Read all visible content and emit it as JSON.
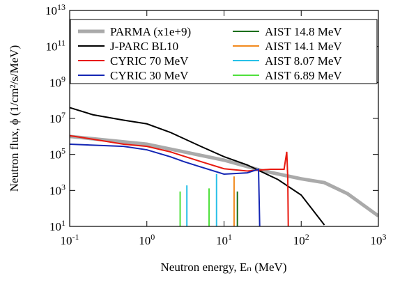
{
  "chart_data": {
    "type": "line",
    "xlabel": "Neutron energy, Eₙ (MeV)",
    "ylabel": "Neutron flux, ϕ (1/cm²/s/MeV)",
    "xlog": true,
    "ylog": true,
    "xlim": [
      0.1,
      1000
    ],
    "ylim": [
      10,
      10000000000000.0
    ],
    "xticks": [
      {
        "value": 0.1,
        "label": "10^-1"
      },
      {
        "value": 1,
        "label": "10^0"
      },
      {
        "value": 10,
        "label": "10^1"
      },
      {
        "value": 100,
        "label": "10^2"
      },
      {
        "value": 1000,
        "label": "10^3"
      }
    ],
    "yticks": [
      {
        "value": 10,
        "label": "10^1"
      },
      {
        "value": 1000,
        "label": "10^3"
      },
      {
        "value": 100000,
        "label": "10^5"
      },
      {
        "value": 10000000,
        "label": "10^7"
      },
      {
        "value": 1000000000,
        "label": "10^9"
      },
      {
        "value": 100000000000,
        "label": "10^11"
      },
      {
        "value": 10000000000000,
        "label": "10^13"
      }
    ],
    "legend": "top",
    "series": [
      {
        "name": "PARMA (x1e+9)",
        "color": "#aaaaaa",
        "width": 5,
        "x": [
          0.1,
          1,
          10,
          30,
          100,
          200,
          400,
          1000
        ],
        "values": [
          1000000,
          370000,
          48000,
          13000,
          4400,
          2700,
          650,
          38
        ]
      },
      {
        "name": "J-PARC BL10",
        "color": "#000000",
        "width": 2,
        "x": [
          0.1,
          0.2,
          0.5,
          1,
          2,
          5,
          10,
          20,
          50,
          100,
          200
        ],
        "values": [
          40000000,
          16000000,
          8000000,
          5000000,
          1700000,
          280000,
          75000,
          26000,
          4000,
          550,
          12
        ]
      },
      {
        "name": "CYRIC 70 MeV",
        "color": "#e8190f",
        "width": 2,
        "x": [
          0.1,
          0.2,
          0.5,
          1,
          2,
          5,
          10,
          20,
          40,
          60,
          65,
          67,
          68
        ],
        "values": [
          1100000,
          700000,
          370000,
          280000,
          140000,
          40000,
          16000,
          12000,
          15000,
          15000,
          140000,
          5000,
          10
        ]
      },
      {
        "name": "CYRIC 30 MeV",
        "color": "#1426b4",
        "width": 2,
        "x": [
          0.1,
          0.5,
          1,
          2,
          3,
          5,
          10,
          20,
          28,
          29
        ],
        "values": [
          370000,
          280000,
          180000,
          75000,
          40000,
          20000,
          8000,
          9500,
          15000,
          10
        ]
      },
      {
        "name": "AIST 14.8 MeV",
        "color": "#1a6e1a",
        "width": 2,
        "mark": "spike",
        "x": [
          14.9
        ],
        "values": [
          870
        ]
      },
      {
        "name": "AIST 14.1 MeV",
        "color": "#f28a1e",
        "width": 2,
        "mark": "spike",
        "x": [
          13.5
        ],
        "values": [
          6000
        ]
      },
      {
        "name": "AIST 8.07 MeV",
        "color": "#27c0e8",
        "width": 2,
        "mark": "spike",
        "x": [
          3.3,
          8.0
        ],
        "values": [
          1900,
          8000
        ]
      },
      {
        "name": "AIST 6.89 MeV",
        "color": "#4fe03c",
        "width": 2,
        "mark": "spike",
        "x": [
          2.7,
          6.4
        ],
        "values": [
          870,
          1300
        ]
      }
    ]
  }
}
